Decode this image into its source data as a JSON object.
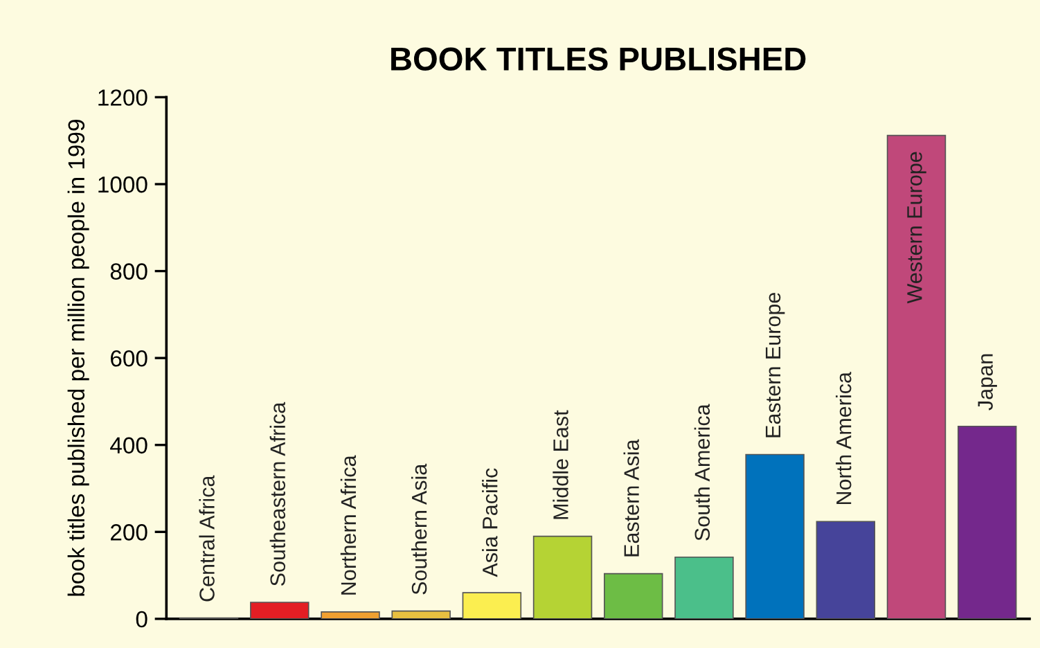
{
  "chart_data": {
    "type": "bar",
    "title": "BOOK TITLES PUBLISHED",
    "ylabel": "book titles published per million people in 1999",
    "categories": [
      "Central Africa",
      "Southeastern Africa",
      "Northern Africa",
      "Southern Asia",
      "Asia Pacific",
      "Middle East",
      "Eastern Asia",
      "South America",
      "Eastern Europe",
      "North America",
      "Western Europe",
      "Japan"
    ],
    "values": [
      2,
      38,
      16,
      18,
      60,
      190,
      104,
      142,
      378,
      224,
      1112,
      443
    ],
    "colors": [
      "#8b1a1a",
      "#e31e24",
      "#f0a030",
      "#e8c040",
      "#fbee50",
      "#b5d334",
      "#6dbd45",
      "#4bbf8a",
      "#0072bc",
      "#46449a",
      "#c0487a",
      "#74288c"
    ],
    "ylim": [
      0,
      1200
    ],
    "yticks": [
      0,
      200,
      400,
      600,
      800,
      1000,
      1200
    ],
    "grid": false,
    "legend": false
  }
}
